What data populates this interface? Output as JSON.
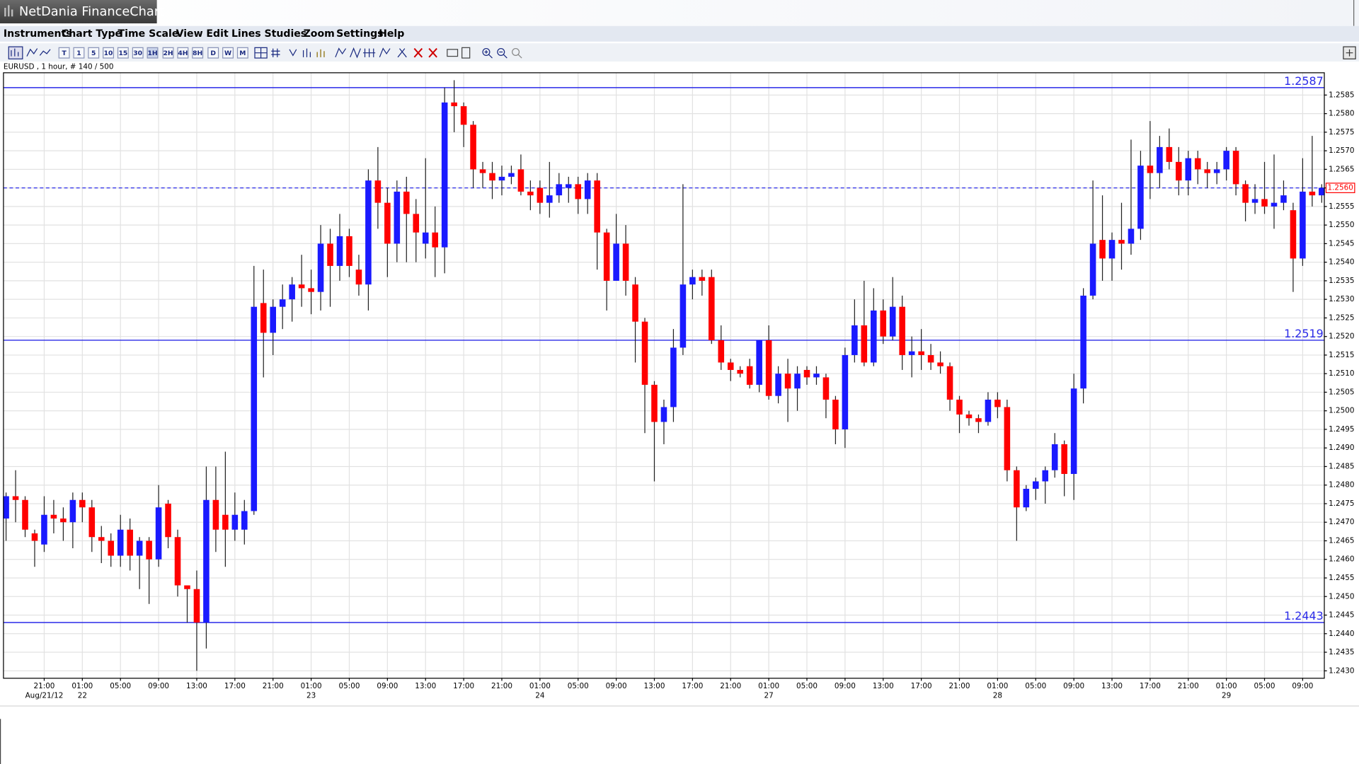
{
  "window": {
    "title": "NetDania FinanceChart"
  },
  "menu": [
    "Instruments",
    "Chart Type",
    "Time Scale",
    "View",
    "Edit",
    "Lines",
    "Studies",
    "Zoom",
    "Settings",
    "Help"
  ],
  "toolbar": [
    "T",
    "1",
    "5",
    "10",
    "15",
    "30",
    "1H",
    "2H",
    "4H",
    "8H",
    "D",
    "W",
    "M"
  ],
  "chart_data": {
    "type": "candlestick",
    "info": "EURUSD , 1 hour, # 140 / 500",
    "categories": [
      null,
      null,
      null,
      null,
      "21:00",
      null,
      null,
      null,
      "01:00",
      null,
      null,
      null,
      "05:00",
      null,
      null,
      null,
      "09:00",
      null,
      null,
      null,
      "13:00",
      null,
      null,
      null,
      "17:00",
      null,
      null,
      null,
      "21:00",
      null,
      null,
      null,
      "01:00",
      null,
      null,
      null,
      "05:00",
      null,
      null,
      null,
      "09:00",
      null,
      null,
      null,
      "13:00",
      null,
      null,
      null,
      "17:00",
      null,
      null,
      null,
      "21:00",
      null,
      null,
      null,
      "01:00",
      null,
      null,
      null,
      "05:00",
      null,
      null,
      null,
      "09:00",
      null,
      null,
      null,
      "13:00",
      null,
      null,
      null,
      "17:00",
      null,
      null,
      null,
      "21:00",
      null,
      null,
      null,
      "01:00",
      null,
      null,
      null,
      "05:00",
      null,
      null,
      null,
      "09:00",
      null,
      null,
      null,
      "13:00",
      null,
      null,
      null,
      "17:00",
      null,
      null,
      null,
      "21:00",
      null,
      null,
      null,
      "01:00",
      null,
      null,
      null,
      "05:00",
      null,
      null,
      null,
      "09:00",
      null,
      null,
      null,
      "13:00",
      null,
      null,
      null,
      "17:00",
      null,
      null,
      null,
      "21:00",
      null,
      null,
      null,
      "01:00",
      null,
      null,
      null,
      "05:00",
      null,
      null,
      null,
      "09:00",
      null,
      null
    ],
    "dates": [
      null,
      null,
      null,
      null,
      "Aug/21/12",
      null,
      null,
      null,
      "22",
      null,
      null,
      null,
      null,
      null,
      null,
      null,
      null,
      null,
      null,
      null,
      null,
      null,
      null,
      null,
      null,
      null,
      null,
      null,
      null,
      null,
      null,
      null,
      "23",
      null,
      null,
      null,
      null,
      null,
      null,
      null,
      null,
      null,
      null,
      null,
      null,
      null,
      null,
      null,
      null,
      null,
      null,
      null,
      null,
      null,
      null,
      null,
      "24",
      null,
      null,
      null,
      null,
      null,
      null,
      null,
      null,
      null,
      null,
      null,
      null,
      null,
      null,
      null,
      null,
      null,
      null,
      null,
      null,
      null,
      null,
      null,
      "27",
      null,
      null,
      null,
      null,
      null,
      null,
      null,
      null,
      null,
      null,
      null,
      null,
      null,
      null,
      null,
      null,
      null,
      null,
      null,
      null,
      null,
      null,
      null,
      "28",
      null,
      null,
      null,
      null,
      null,
      null,
      null,
      null,
      null,
      null,
      null,
      null,
      null,
      null,
      null,
      null,
      null,
      null,
      null,
      null,
      null,
      null,
      null,
      "29",
      null,
      null,
      null,
      null,
      null,
      null,
      null,
      null,
      null,
      null
    ],
    "open": [
      1.2471,
      1.2477,
      1.2476,
      1.2467,
      1.2464,
      1.2472,
      1.2471,
      1.247,
      1.2476,
      1.2474,
      1.2466,
      1.2465,
      1.2461,
      1.2468,
      1.2461,
      1.2465,
      1.246,
      1.2475,
      1.2466,
      1.2453,
      1.2452,
      1.2443,
      1.2476,
      1.2472,
      1.2468,
      1.2468,
      1.2473,
      1.2529,
      1.2521,
      1.2528,
      1.253,
      1.2534,
      1.2533,
      1.2532,
      1.2545,
      1.2539,
      1.2547,
      1.2538,
      1.2534,
      1.2562,
      1.2556,
      1.2545,
      1.2559,
      1.2553,
      1.2545,
      1.2548,
      1.2544,
      1.2583,
      1.2582,
      1.2577,
      1.2565,
      1.2564,
      1.2562,
      1.2563,
      1.2565,
      1.2559,
      1.256,
      1.2556,
      1.2558,
      1.256,
      1.2561,
      1.2557,
      1.2562,
      1.2548,
      1.2535,
      1.2545,
      1.2534,
      1.2524,
      1.2507,
      1.2497,
      1.2501,
      1.2517,
      1.2534,
      1.2536,
      1.2536,
      1.2519,
      1.2513,
      1.2511,
      1.2512,
      1.2507,
      1.2519,
      1.2504,
      1.251,
      1.2506,
      1.2511,
      1.2509,
      1.2509,
      1.2503,
      1.2495,
      1.2515,
      1.2523,
      1.2513,
      1.2527,
      1.252,
      1.2528,
      1.2515,
      1.2516,
      1.2515,
      1.2513,
      1.2512,
      1.2503,
      1.2499,
      1.2498,
      1.2497,
      1.2503,
      1.2501,
      1.2484,
      1.2474,
      1.2479,
      1.2481,
      1.2484,
      1.2491,
      1.2483,
      1.2506,
      1.2531,
      1.2546,
      1.2541,
      1.2546,
      1.2545,
      1.2549,
      1.2566,
      1.2564,
      1.2571,
      1.2567,
      1.2562,
      1.2568,
      1.2565,
      1.2564,
      1.2565,
      1.257,
      1.2561,
      1.2556,
      1.2557,
      1.2555,
      1.2556,
      1.2554,
      1.2541,
      1.2559,
      1.2558
    ],
    "high": [
      1.2478,
      1.2484,
      1.2477,
      1.2468,
      1.2477,
      1.2476,
      1.2474,
      1.2478,
      1.2478,
      1.2476,
      1.2469,
      1.2467,
      1.2472,
      1.2471,
      1.2466,
      1.2466,
      1.248,
      1.2476,
      1.2468,
      1.2453,
      1.2457,
      1.2485,
      1.2485,
      1.2489,
      1.2478,
      1.2476,
      1.2539,
      1.2538,
      1.253,
      1.2534,
      1.2536,
      1.2542,
      1.2538,
      1.255,
      1.2549,
      1.2553,
      1.2549,
      1.2542,
      1.2565,
      1.2571,
      1.256,
      1.2562,
      1.2563,
      1.2557,
      1.2568,
      1.2555,
      1.2587,
      1.2589,
      1.2583,
      1.2578,
      1.2567,
      1.2567,
      1.2566,
      1.2566,
      1.2569,
      1.2562,
      1.2562,
      1.2567,
      1.2564,
      1.2563,
      1.2563,
      1.2564,
      1.2564,
      1.2549,
      1.2553,
      1.255,
      1.2536,
      1.2525,
      1.2508,
      1.2503,
      1.2522,
      1.2561,
      1.2538,
      1.2538,
      1.2538,
      1.2523,
      1.2514,
      1.2512,
      1.2514,
      1.2519,
      1.2523,
      1.2512,
      1.2514,
      1.2512,
      1.2512,
      1.2512,
      1.251,
      1.2504,
      1.2517,
      1.253,
      1.2535,
      1.2533,
      1.253,
      1.2536,
      1.2531,
      1.252,
      1.2522,
      1.2518,
      1.2516,
      1.2513,
      1.2504,
      1.25,
      1.2499,
      1.2505,
      1.2505,
      1.2503,
      1.2485,
      1.248,
      1.2482,
      1.2485,
      1.2494,
      1.2492,
      1.251,
      1.2533,
      1.2562,
      1.2558,
      1.2548,
      1.2556,
      1.2573,
      1.257,
      1.2578,
      1.2574,
      1.2576,
      1.2571,
      1.257,
      1.257,
      1.2567,
      1.2567,
      1.2571,
      1.2571,
      1.2562,
      1.2561,
      1.2567,
      1.2569,
      1.2562,
      1.2556,
      1.2568,
      1.2574,
      1.2561
    ],
    "low": [
      1.2465,
      1.247,
      1.2466,
      1.2458,
      1.2462,
      1.2467,
      1.2465,
      1.2463,
      1.247,
      1.2462,
      1.2459,
      1.2458,
      1.2458,
      1.2457,
      1.2452,
      1.2448,
      1.2458,
      1.2463,
      1.245,
      1.2443,
      1.243,
      1.2436,
      1.2462,
      1.2458,
      1.2465,
      1.2464,
      1.2472,
      1.2509,
      1.2515,
      1.2522,
      1.2524,
      1.2528,
      1.2526,
      1.2527,
      1.2528,
      1.2535,
      1.2536,
      1.2531,
      1.2527,
      1.2549,
      1.2536,
      1.254,
      1.254,
      1.254,
      1.2541,
      1.2536,
      1.2537,
      1.2575,
      1.2571,
      1.256,
      1.256,
      1.2557,
      1.2558,
      1.2561,
      1.2558,
      1.2554,
      1.2553,
      1.2552,
      1.2556,
      1.2556,
      1.2553,
      1.2553,
      1.2538,
      1.2527,
      1.2535,
      1.2531,
      1.2513,
      1.2494,
      1.2481,
      1.2491,
      1.2497,
      1.2515,
      1.253,
      1.2531,
      1.2518,
      1.2511,
      1.2508,
      1.2509,
      1.2506,
      1.2505,
      1.2503,
      1.2502,
      1.2497,
      1.25,
      1.2507,
      1.2507,
      1.2498,
      1.2491,
      1.249,
      1.2513,
      1.2512,
      1.2512,
      1.2518,
      1.2519,
      1.2511,
      1.2509,
      1.2511,
      1.2511,
      1.251,
      1.25,
      1.2494,
      1.2496,
      1.2494,
      1.2496,
      1.2498,
      1.2481,
      1.2465,
      1.2473,
      1.2476,
      1.2475,
      1.2482,
      1.2477,
      1.2476,
      1.2502,
      1.253,
      1.2535,
      1.2535,
      1.2538,
      1.2542,
      1.2546,
      1.2557,
      1.256,
      1.2565,
      1.2558,
      1.2558,
      1.2561,
      1.256,
      1.2561,
      1.2562,
      1.2558,
      1.2551,
      1.2553,
      1.2553,
      1.2549,
      1.2554,
      1.2532,
      1.2539,
      1.2555,
      1.2556
    ],
    "close": [
      1.2477,
      1.2476,
      1.2468,
      1.2465,
      1.2472,
      1.2471,
      1.247,
      1.2476,
      1.2474,
      1.2466,
      1.2465,
      1.2461,
      1.2468,
      1.2461,
      1.2465,
      1.246,
      1.2474,
      1.2466,
      1.2453,
      1.2452,
      1.2443,
      1.2476,
      1.2468,
      1.2468,
      1.2472,
      1.2473,
      1.2528,
      1.2521,
      1.2528,
      1.253,
      1.2534,
      1.2533,
      1.2532,
      1.2545,
      1.2539,
      1.2547,
      1.2539,
      1.2534,
      1.2562,
      1.2556,
      1.2545,
      1.2559,
      1.2553,
      1.2548,
      1.2548,
      1.2544,
      1.2583,
      1.2582,
      1.2577,
      1.2565,
      1.2564,
      1.2562,
      1.2563,
      1.2564,
      1.2559,
      1.2558,
      1.2556,
      1.2558,
      1.2561,
      1.2561,
      1.2557,
      1.2562,
      1.2548,
      1.2535,
      1.2545,
      1.2535,
      1.2524,
      1.2507,
      1.2497,
      1.2501,
      1.2517,
      1.2534,
      1.2536,
      1.2535,
      1.2519,
      1.2513,
      1.2511,
      1.251,
      1.2507,
      1.2519,
      1.2504,
      1.251,
      1.2506,
      1.251,
      1.2509,
      1.251,
      1.2503,
      1.2495,
      1.2515,
      1.2523,
      1.2513,
      1.2527,
      1.252,
      1.2528,
      1.2515,
      1.2516,
      1.2515,
      1.2513,
      1.2512,
      1.2503,
      1.2499,
      1.2498,
      1.2497,
      1.2503,
      1.2501,
      1.2484,
      1.2474,
      1.2479,
      1.2481,
      1.2484,
      1.2491,
      1.2483,
      1.2506,
      1.2531,
      1.2545,
      1.2541,
      1.2546,
      1.2545,
      1.2549,
      1.2566,
      1.2564,
      1.2571,
      1.2567,
      1.2562,
      1.2568,
      1.2565,
      1.2564,
      1.2565,
      1.257,
      1.2561,
      1.2556,
      1.2557,
      1.2555,
      1.2556,
      1.2558,
      1.2541,
      1.2559,
      1.2558,
      1.256
    ],
    "up_color": "#1a1aff",
    "down_color": "#ff0000",
    "ylim": [
      1.2428,
      1.2591
    ],
    "yticks": [
      {
        "value": 1.243,
        "label": "1.2430"
      },
      1.2435,
      {
        "value": 1.244,
        "label": "1.2440"
      },
      1.2445,
      {
        "value": 1.245,
        "label": "1.2450"
      },
      1.2455,
      {
        "value": 1.246,
        "label": "1.2460"
      },
      1.2465,
      {
        "value": 1.247,
        "label": "1.2470"
      },
      1.2475,
      {
        "value": 1.248,
        "label": "1.2480"
      },
      1.2485,
      {
        "value": 1.249,
        "label": "1.2490"
      },
      1.2495,
      {
        "value": 1.25,
        "label": "1.2500"
      },
      1.2505,
      {
        "value": 1.251,
        "label": "1.2510"
      },
      1.2515,
      {
        "value": 1.252,
        "label": "1.2520"
      },
      1.2525,
      {
        "value": 1.253,
        "label": "1.2530"
      },
      1.2535,
      {
        "value": 1.254,
        "label": "1.2540"
      },
      1.2545,
      {
        "value": 1.255,
        "label": "1.2550"
      },
      1.2555,
      {
        "value": 1.256,
        "label": "1.2560"
      },
      1.2565,
      {
        "value": 1.257,
        "label": "1.2570"
      },
      1.2575,
      {
        "value": 1.258,
        "label": "1.2580"
      },
      1.2585
    ],
    "grid": true,
    "levels": [
      1.2587,
      1.2519,
      1.2443
    ],
    "level_color": "#2a2ae8",
    "last_price": {
      "value": 1.256,
      "label": "1.2560"
    }
  }
}
